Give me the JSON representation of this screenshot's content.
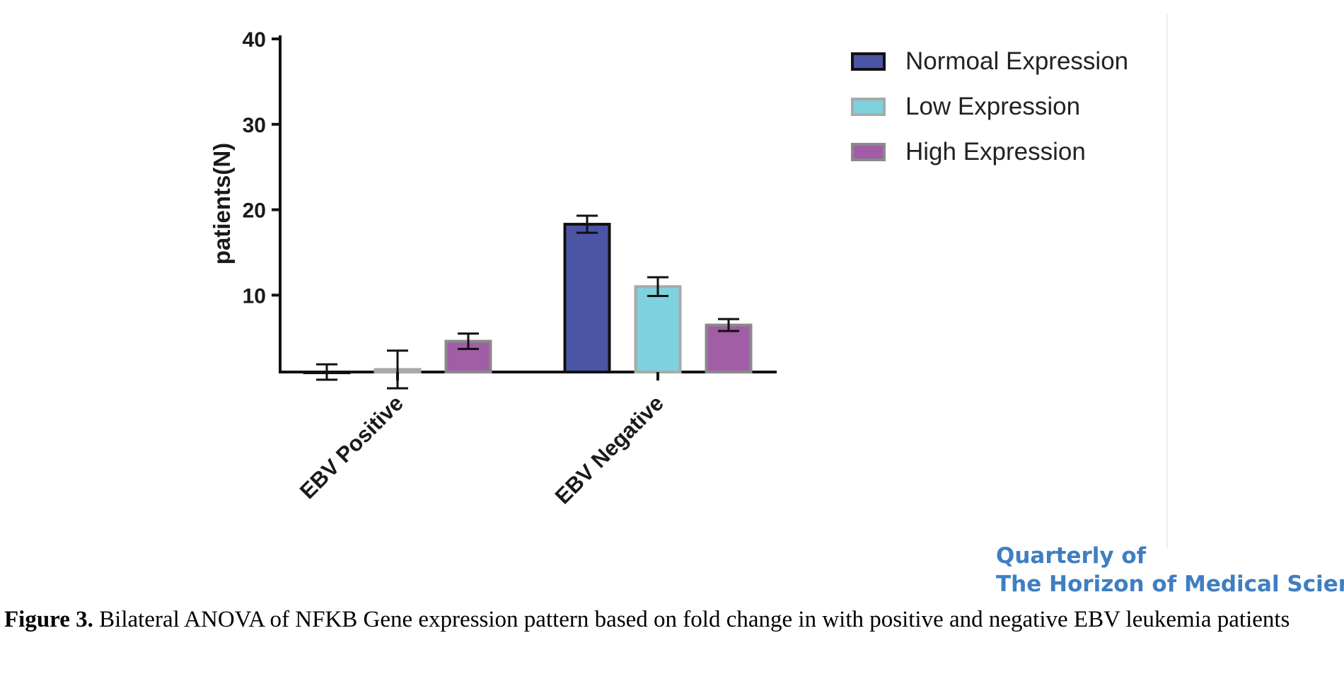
{
  "chart_data": {
    "type": "bar",
    "categories": [
      "EBV Positive",
      "EBV Negative"
    ],
    "series": [
      {
        "name": "Normoal Expression",
        "values": [
          1,
          18.3
        ],
        "errors": [
          0.9,
          1.0
        ],
        "color": "#4b55a6"
      },
      {
        "name": "Low Expression",
        "values": [
          1.3,
          11.0
        ],
        "errors": [
          2.2,
          1.1
        ],
        "color": "#7ed2dd"
      },
      {
        "name": "High Expression",
        "values": [
          4.6,
          6.5
        ],
        "errors": [
          0.9,
          0.7
        ],
        "color": "#a15da6"
      }
    ],
    "ylabel": "patients(N)",
    "xlabel": "",
    "yticks": [
      10,
      20,
      30,
      40
    ],
    "ylim": [
      1,
      40
    ],
    "legend": "top-right",
    "grid": false
  },
  "journal": {
    "line1": "Quarterly of",
    "line2": "The Horizon of Medical Sciences"
  },
  "caption": {
    "label": "Figure 3.",
    "text": " Bilateral ANOVA of NFKB Gene expression pattern based on fold change in with positive and negative EBV leukemia patients"
  }
}
